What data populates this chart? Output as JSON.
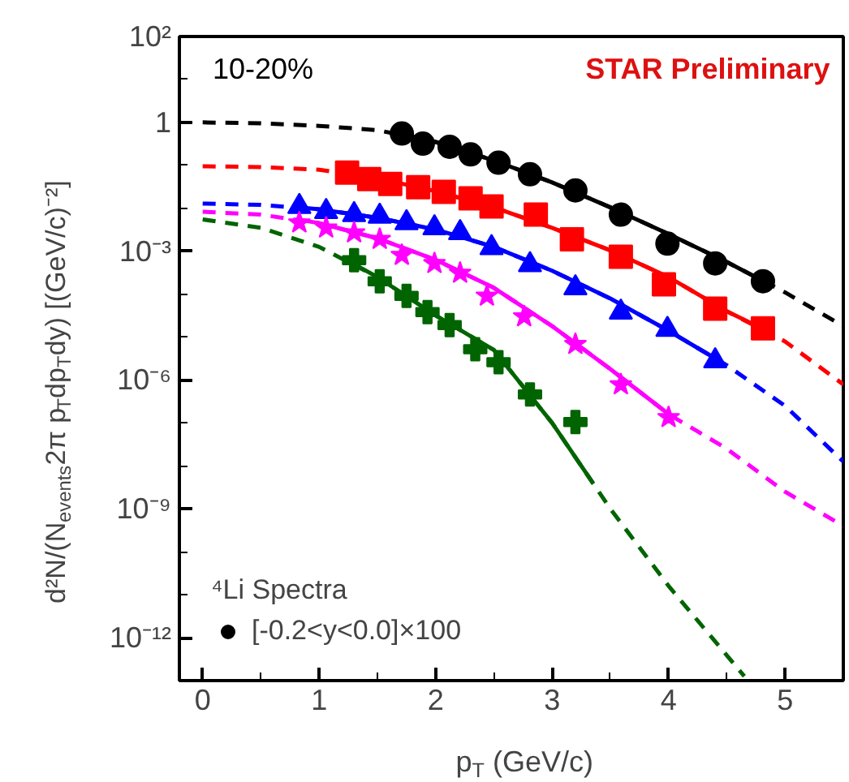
{
  "chart_data": {
    "type": "scatter",
    "xlabel": "p$_{T}$ (GeV/c)",
    "ylabel": "d²N/(N$_{events}$2π p$_{T}$dp$_{T}$dy) [(GeV/c)⁻²]",
    "legend_title": "⁴Li Spectra",
    "legend": "bottom left",
    "log": "y",
    "grid": false,
    "xlim": [
      -0.2,
      5.5
    ],
    "ylim": [
      1e-13,
      100
    ],
    "xticks": [
      0,
      {
        "value": 0.5,
        "label": null
      },
      1,
      {
        "value": 1.5,
        "label": null
      },
      2,
      {
        "value": 2.5,
        "label": null
      },
      3,
      {
        "value": 3.5,
        "label": null
      },
      4,
      {
        "value": 4.5,
        "label": null
      },
      5
    ],
    "yticks": [
      {
        "value": 100,
        "label": "10²"
      },
      {
        "value": 10,
        "label": null
      },
      1,
      {
        "value": 0.1,
        "label": null
      },
      {
        "value": 0.01,
        "label": null
      },
      {
        "value": 0.001,
        "label": "10⁻³"
      },
      {
        "value": 0.0001,
        "label": null
      },
      {
        "value": 1e-05,
        "label": null
      },
      {
        "value": 1e-06,
        "label": "10⁻⁶"
      },
      {
        "value": 1e-07,
        "label": null
      },
      {
        "value": 1e-08,
        "label": null
      },
      {
        "value": 1e-09,
        "label": "10⁻⁹"
      },
      {
        "value": 1e-10,
        "label": null
      },
      {
        "value": 1e-11,
        "label": null
      },
      {
        "value": 1e-12,
        "label": "10⁻¹²"
      },
      {
        "value": 1e-13,
        "label": null
      }
    ],
    "annotations": [
      "10-20%",
      "STAR Preliminary"
    ],
    "series": [
      {
        "type": "line",
        "line_style": "dashed",
        "color": "#000000",
        "x": [
          0,
          0.5,
          1,
          1.5,
          2,
          2.5,
          3,
          3.5,
          4,
          4.5,
          5,
          5.5
        ],
        "values": [
          1,
          0.95,
          0.83,
          0.66,
          0.35,
          0.13,
          0.04,
          0.0105,
          0.0025,
          0.00056,
          0.00011,
          1.8e-05
        ]
      },
      {
        "type": "line",
        "line_style": "dashed",
        "color": "#ff0000",
        "x": [
          0,
          0.5,
          1,
          1.5,
          2,
          2.5,
          3,
          3.5,
          4,
          4.5,
          5,
          5.5
        ],
        "values": [
          0.095,
          0.091,
          0.079,
          0.05,
          0.025,
          0.0105,
          0.0035,
          0.00105,
          0.00025,
          4e-05,
          7.9e-06,
          7.9e-07
        ]
      },
      {
        "type": "line",
        "line_style": "dashed",
        "color": "#0000ff",
        "x": [
          0,
          0.5,
          1,
          1.5,
          2,
          2.5,
          3,
          3.5,
          4,
          4.5,
          5,
          5.5
        ],
        "values": [
          0.0129,
          0.012,
          0.0095,
          0.006,
          0.0032,
          0.00126,
          0.00035,
          7.9e-05,
          1.4e-05,
          2.2e-06,
          2.5e-07,
          1.26e-08
        ]
      },
      {
        "type": "line",
        "line_style": "dashed",
        "color": "#ff00ff",
        "x": [
          0,
          0.5,
          1,
          1.5,
          2,
          2.5,
          3,
          3.5,
          4,
          4.5,
          5,
          5.5
        ],
        "values": [
          0.0083,
          0.0071,
          0.0045,
          0.002,
          0.00063,
          0.00014,
          1.8e-05,
          1.8e-06,
          1.6e-07,
          2.5e-08,
          2.5e-09,
          4e-10
        ]
      },
      {
        "type": "line",
        "line_style": "dashed",
        "color": "#006400",
        "x": [
          0,
          0.5,
          1,
          1.5,
          2,
          2.5,
          3,
          3.5,
          4,
          4.65
        ],
        "values": [
          0.0055,
          0.0035,
          0.00126,
          0.00025,
          3.2e-05,
          5e-06,
          1e-07,
          1e-09,
          1.6e-11,
          1.26e-13
        ]
      },
      {
        "type": "line",
        "line_style": "solid",
        "color": "#000000",
        "x": [
          1.7,
          2,
          2.5,
          3,
          3.5,
          4,
          4.5,
          4.8
        ],
        "values": [
          0.54,
          0.35,
          0.13,
          0.04,
          0.0105,
          0.0025,
          0.00056,
          0.00021
        ]
      },
      {
        "type": "line",
        "line_style": "solid",
        "color": "#ff0000",
        "x": [
          1.2,
          1.5,
          2,
          2.5,
          3,
          3.5,
          4,
          4.5,
          4.8
        ],
        "values": [
          0.068,
          0.05,
          0.025,
          0.0105,
          0.0035,
          0.00105,
          0.00025,
          4e-05,
          1.6e-05
        ]
      },
      {
        "type": "line",
        "line_style": "solid",
        "color": "#0000ff",
        "x": [
          0.8,
          1,
          1.5,
          2,
          2.5,
          3,
          3.5,
          4,
          4.4
        ],
        "values": [
          0.0107,
          0.0095,
          0.006,
          0.0032,
          0.00126,
          0.00035,
          7.9e-05,
          1.4e-05,
          3.2e-06
        ]
      },
      {
        "type": "line",
        "line_style": "solid",
        "color": "#ff00ff",
        "x": [
          0.8,
          1,
          1.5,
          2,
          2.5,
          3,
          3.5,
          4
        ],
        "values": [
          0.0056,
          0.0045,
          0.002,
          0.00063,
          0.00014,
          1.8e-05,
          1.8e-06,
          1.6e-07
        ]
      },
      {
        "type": "line",
        "line_style": "solid",
        "color": "#006400",
        "x": [
          1.3,
          1.5,
          2,
          2.5,
          3,
          3.35
        ],
        "values": [
          0.0005,
          0.00025,
          3.2e-05,
          5e-06,
          1e-07,
          4e-09
        ]
      },
      {
        "type": "scatter",
        "marker": "circle",
        "name": "[-0.2<y<0.0]×100",
        "color": "#000000",
        "x": [
          1.71,
          1.89,
          2.12,
          2.3,
          2.54,
          2.81,
          3.2,
          3.59,
          3.99,
          4.4,
          4.81
        ],
        "values": [
          0.55,
          0.32,
          0.27,
          0.18,
          0.115,
          0.062,
          0.026,
          0.0071,
          0.0015,
          0.00052,
          0.0002
        ]
      },
      {
        "type": "scatter",
        "marker": "square",
        "color": "#ff0000",
        "x": [
          1.24,
          1.43,
          1.61,
          1.85,
          2.07,
          2.3,
          2.48,
          2.86,
          3.17,
          3.59,
          3.96,
          4.4,
          4.81
        ],
        "values": [
          0.068,
          0.048,
          0.037,
          0.031,
          0.024,
          0.017,
          0.011,
          0.0071,
          0.0019,
          0.00074,
          0.00017,
          4.6e-05,
          1.6e-05
        ]
      },
      {
        "type": "scatter",
        "marker": "triangle",
        "color": "#0000ff",
        "x": [
          0.83,
          1.06,
          1.3,
          1.52,
          1.75,
          1.99,
          2.21,
          2.48,
          2.81,
          3.2,
          3.59,
          3.99,
          4.4
        ],
        "values": [
          0.011,
          0.0083,
          0.0071,
          0.0065,
          0.0046,
          0.0035,
          0.0027,
          0.0012,
          0.00048,
          0.00014,
          3.8e-05,
          1.5e-05,
          2.8e-06
        ]
      },
      {
        "type": "scatter",
        "marker": "star",
        "color": "#ff00ff",
        "x": [
          0.83,
          1.06,
          1.3,
          1.52,
          1.71,
          1.99,
          2.21,
          2.44,
          2.76,
          3.2,
          3.59,
          4.0
        ],
        "values": [
          0.0046,
          0.0035,
          0.0027,
          0.0019,
          0.00081,
          0.00052,
          0.00031,
          9.1e-05,
          3e-05,
          6.8e-06,
          7.8e-07,
          1.35e-07
        ]
      },
      {
        "type": "scatter",
        "marker": "cross",
        "color": "#006400",
        "x": [
          1.3,
          1.52,
          1.75,
          1.93,
          2.12,
          2.34,
          2.54,
          2.81,
          3.2
        ],
        "values": [
          0.00062,
          0.0002,
          9.1e-05,
          3.8e-05,
          1.9e-05,
          5.2e-06,
          2.6e-06,
          4.6e-07,
          1.05e-07
        ]
      }
    ]
  }
}
